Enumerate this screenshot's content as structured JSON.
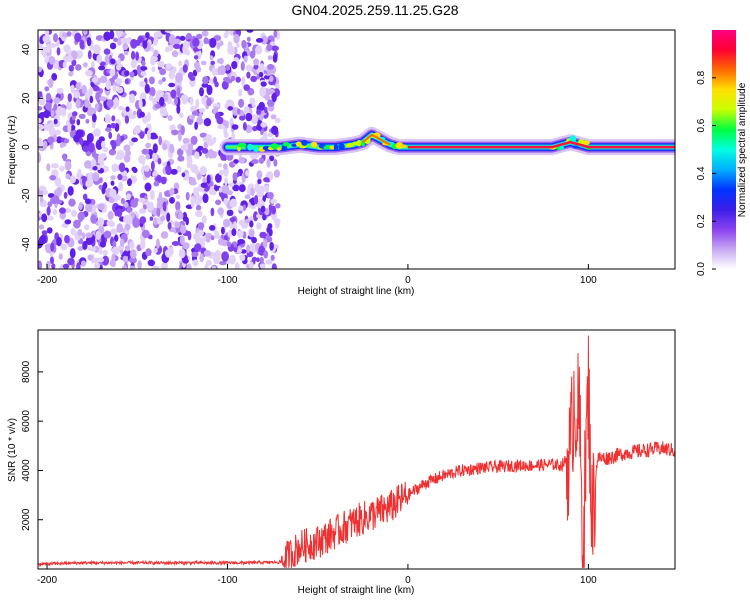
{
  "title": "GN04.2025.259.11.25.G28",
  "chart_data": [
    {
      "type": "heatmap",
      "xlabel": "Height of straight line (km)",
      "ylabel": "Frequency (Hz)",
      "xlim": [
        -205,
        148
      ],
      "ylim": [
        -50,
        48
      ],
      "x_ticks": [
        -200,
        -100,
        0,
        100
      ],
      "y_ticks": [
        -40,
        -20,
        0,
        20,
        40
      ],
      "colorbar": {
        "label": "Normalized spectral amplitude",
        "range": [
          0,
          1
        ],
        "ticks": [
          "0.0",
          "0.2",
          "0.4",
          "0.6",
          "0.8"
        ],
        "colors": [
          "#ffffff",
          "#c7a8f2",
          "#8a40f0",
          "#3a1ee8",
          "#0033ff",
          "#00b0ff",
          "#00ffe0",
          "#00ff40",
          "#c8ff00",
          "#ffe000",
          "#ff6a00",
          "#ff0033",
          "#ff0080"
        ]
      },
      "noise_region": {
        "x": [
          -205,
          -72
        ],
        "y": [
          -50,
          48
        ]
      },
      "signal_ridge": {
        "x": [
          -100,
          -90,
          -80,
          -70,
          -60,
          -50,
          -40,
          -30,
          -25,
          -20,
          -15,
          -10,
          -5,
          0,
          10,
          40,
          80,
          85,
          90,
          95,
          100,
          110,
          148
        ],
        "y": [
          0,
          0,
          0,
          0,
          1,
          0,
          0,
          1,
          2,
          5,
          3,
          1,
          0,
          0,
          0,
          0,
          0,
          1,
          2,
          1,
          0,
          0,
          0
        ],
        "peak_amplitude_from_x": 0
      }
    },
    {
      "type": "line",
      "xlabel": "Height of straight line (km)",
      "ylabel": "SNR (10 * v/v)",
      "xlim": [
        -205,
        148
      ],
      "ylim": [
        0,
        9700
      ],
      "x_ticks": [
        -200,
        -100,
        0,
        100
      ],
      "y_ticks": [
        2000,
        4000,
        6000,
        8000
      ],
      "color": "#f03030",
      "series": [
        {
          "x": [
            -205,
            -180,
            -150,
            -120,
            -90,
            -70,
            -65,
            -60,
            -50,
            -40,
            -30,
            -20,
            -10,
            0,
            10,
            20,
            30,
            40,
            50,
            60,
            70,
            80,
            85,
            90,
            92,
            95,
            97,
            100,
            102,
            105,
            110,
            120,
            130,
            140,
            148
          ],
          "y": [
            200,
            250,
            250,
            250,
            250,
            280,
            600,
            900,
            1100,
            1500,
            1900,
            2200,
            2500,
            3000,
            3500,
            3800,
            4000,
            4100,
            4150,
            4200,
            4200,
            4250,
            4200,
            4600,
            7000,
            6000,
            1000,
            7500,
            2000,
            4500,
            4500,
            4700,
            4800,
            4900,
            4800
          ]
        }
      ]
    }
  ]
}
